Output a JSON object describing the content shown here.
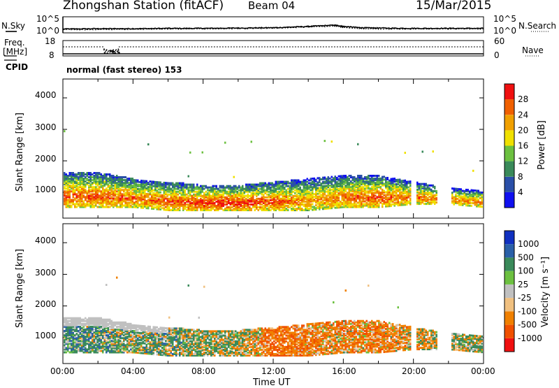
{
  "header": {
    "station": "Zhongshan Station (fitACF)",
    "beam": "Beam 04",
    "date": "15/Mar/2015"
  },
  "noise_panel": {
    "left_label": "N.Sky",
    "right_label": "N.Search",
    "left_ticks": [
      "10^5",
      "10^0"
    ],
    "right_ticks": [
      "10^5",
      "10^0"
    ]
  },
  "freq_panel": {
    "left_label_1": "Freq.",
    "left_label_2": "[MHz]",
    "right_label": "Nave",
    "left_ticks": [
      "18",
      "8"
    ],
    "right_ticks": [
      "60",
      "0"
    ]
  },
  "cpid": {
    "label": "CPID",
    "mode": "normal (fast stereo) 153"
  },
  "x_axis": {
    "label": "Time UT",
    "ticks": [
      "00:00",
      "04:00",
      "08:00",
      "12:00",
      "16:00",
      "20:00",
      "00:00"
    ]
  },
  "power_panel": {
    "ylabel": "Slant Range [km]",
    "yticks": [
      "1000",
      "2000",
      "3000",
      "4000"
    ],
    "colorbar_label": "Power [dB]",
    "colorbar_ticks": [
      "4",
      "8",
      "12",
      "16",
      "20",
      "24",
      "28"
    ]
  },
  "velocity_panel": {
    "ylabel": "Slant Range [km]",
    "yticks": [
      "1000",
      "2000",
      "3000",
      "4000"
    ],
    "colorbar_label": "Velocity [m s⁻¹]",
    "colorbar_ticks": [
      "1000",
      "500",
      "100",
      "25",
      "-25",
      "-100",
      "-500",
      "-1000"
    ]
  },
  "colors": {
    "power_scale": [
      "#1010f0",
      "#2a4fa8",
      "#3a8a5a",
      "#6cc040",
      "#f0e000",
      "#f0a000",
      "#f06000",
      "#f01010"
    ],
    "velocity_scale": [
      "#1030c0",
      "#2a60a8",
      "#3a8a5a",
      "#6cc040",
      "#c0c0c0",
      "#f0c080",
      "#f08000",
      "#f05000",
      "#f01010"
    ]
  },
  "chart_data": [
    {
      "type": "line",
      "name": "noise",
      "x_hours": [
        0,
        2,
        4,
        6,
        8,
        10,
        12,
        14,
        15.5,
        16,
        17,
        18,
        20,
        22,
        24
      ],
      "series": [
        {
          "name": "N.Sky",
          "values": [
            1.2,
            1.3,
            1.3,
            1.4,
            1.4,
            1.5,
            1.6,
            2.0,
            2.4,
            2.0,
            1.6,
            1.5,
            1.4,
            1.4,
            1.4
          ]
        },
        {
          "name": "N.Search",
          "values": [
            1.0,
            1.0,
            1.1,
            1.2,
            1.2,
            1.3,
            1.4,
            1.8,
            2.1,
            1.7,
            1.3,
            1.2,
            1.2,
            1.2,
            1.2
          ]
        }
      ],
      "ylim": [
        0,
        5
      ],
      "yscale": "log10"
    },
    {
      "type": "line",
      "name": "freq_nave",
      "x_hours": [
        0,
        2.3,
        2.4,
        3.1,
        3.2,
        24
      ],
      "series": [
        {
          "name": "Freq.",
          "values": [
            12,
            12,
            10,
            10,
            12,
            12
          ]
        },
        {
          "name": "Nave",
          "values": [
            20,
            20,
            12,
            12,
            20,
            20
          ]
        }
      ]
    },
    {
      "type": "heatmap",
      "name": "power",
      "x_hours": [
        0,
        2,
        4,
        6,
        8,
        10,
        12,
        14,
        16,
        18,
        20,
        22,
        24
      ],
      "y_range_km": [
        180,
        4500
      ],
      "ylim": [
        180,
        4600
      ],
      "zlim": [
        0,
        30
      ],
      "echo_band_km": [
        [
          500,
          1600
        ],
        [
          500,
          1600
        ],
        [
          500,
          1400
        ],
        [
          400,
          1300
        ],
        [
          400,
          1200
        ],
        [
          400,
          1200
        ],
        [
          400,
          1300
        ],
        [
          400,
          1400
        ],
        [
          500,
          1500
        ],
        [
          500,
          1500
        ],
        [
          600,
          1300
        ],
        [
          600,
          1100
        ],
        [
          500,
          1000
        ]
      ],
      "peak_power_db": [
        26,
        26,
        24,
        26,
        28,
        28,
        26,
        22,
        24,
        26,
        24,
        22,
        24
      ]
    },
    {
      "type": "heatmap",
      "name": "velocity",
      "x_hours": [
        0,
        2,
        4,
        6,
        8,
        10,
        12,
        14,
        16,
        18,
        20,
        22,
        24
      ],
      "y_range_km": [
        180,
        4500
      ],
      "ylim": [
        180,
        4600
      ],
      "zlim": [
        -1000,
        1000
      ],
      "mean_velocity_ms": [
        200,
        150,
        100,
        100,
        50,
        30,
        -300,
        -200,
        -150,
        -200,
        -100,
        0,
        50
      ]
    }
  ]
}
